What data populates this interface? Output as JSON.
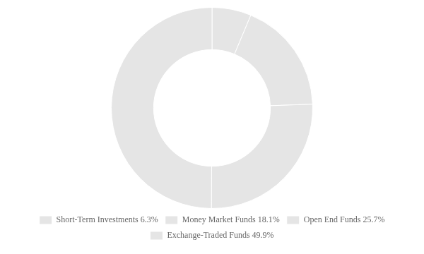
{
  "chart_data": {
    "type": "donut",
    "categories": [
      "Short-Term Investments 6.3%",
      "Money Market Funds 18.1%",
      "Open End Funds 25.7%",
      "Exchange-Traded Funds 49.9%"
    ],
    "values": [
      6.3,
      18.1,
      25.7,
      49.9
    ],
    "legend": "bottom"
  }
}
